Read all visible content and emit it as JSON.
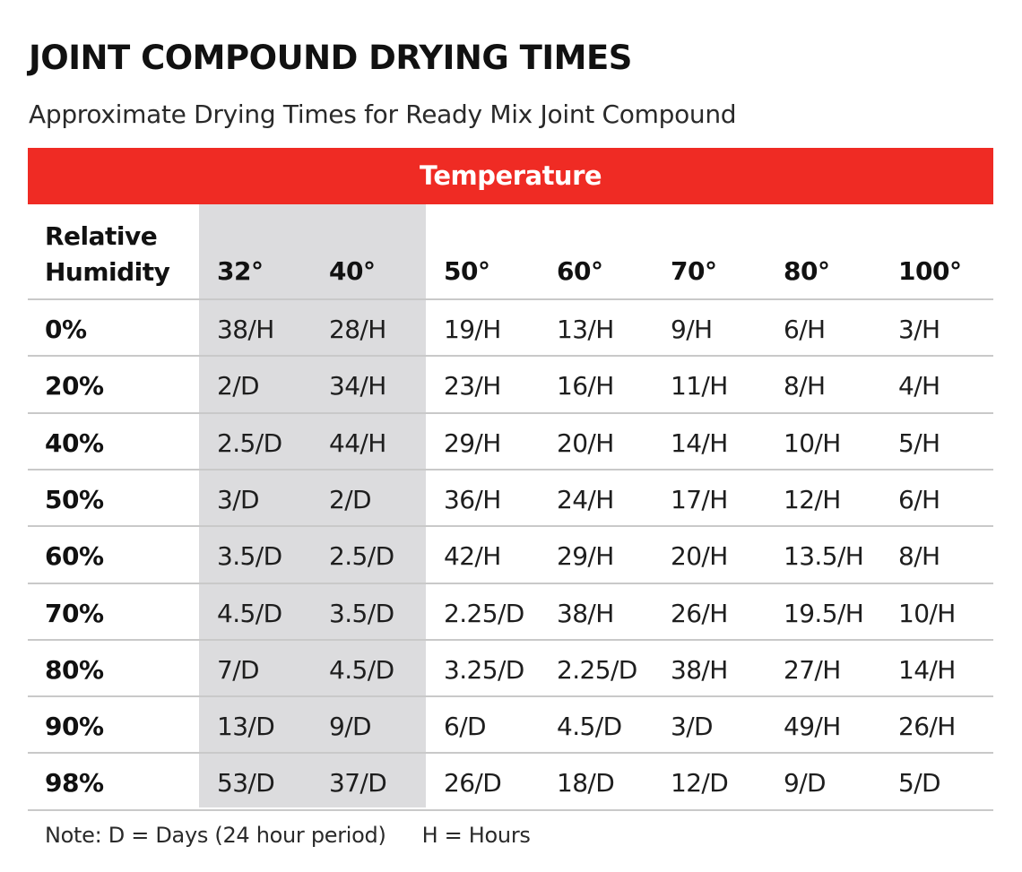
{
  "title": "JOINT COMPOUND DRYING TIMES",
  "subtitle": "Approximate Drying Times for Ready Mix Joint Compound",
  "colors": {
    "band": "#ef2b24",
    "shade": "#dcdcde",
    "rule": "#c9c9c9"
  },
  "chart_data": {
    "type": "table",
    "title": "JOINT COMPOUND DRYING TIMES",
    "subtitle": "Approximate Drying Times for Ready Mix Joint Compound",
    "column_group_label": "Temperature",
    "row_header_label": [
      "Relative",
      "Humidity"
    ],
    "columns": [
      "32°",
      "40°",
      "50°",
      "60°",
      "70°",
      "80°",
      "100°"
    ],
    "shaded_columns": [
      "32°",
      "40°"
    ],
    "rows": [
      {
        "label": "0%",
        "values": [
          "38/H",
          "28/H",
          "19/H",
          "13/H",
          "9/H",
          "6/H",
          "3/H"
        ]
      },
      {
        "label": "20%",
        "values": [
          "2/D",
          "34/H",
          "23/H",
          "16/H",
          "11/H",
          "8/H",
          "4/H"
        ]
      },
      {
        "label": "40%",
        "values": [
          "2.5/D",
          "44/H",
          "29/H",
          "20/H",
          "14/H",
          "10/H",
          "5/H"
        ]
      },
      {
        "label": "50%",
        "values": [
          "3/D",
          "2/D",
          "36/H",
          "24/H",
          "17/H",
          "12/H",
          "6/H"
        ]
      },
      {
        "label": "60%",
        "values": [
          "3.5/D",
          "2.5/D",
          "42/H",
          "29/H",
          "20/H",
          "13.5/H",
          "8/H"
        ]
      },
      {
        "label": "70%",
        "values": [
          "4.5/D",
          "3.5/D",
          "2.25/D",
          "38/H",
          "26/H",
          "19.5/H",
          "10/H"
        ]
      },
      {
        "label": "80%",
        "values": [
          "7/D",
          "4.5/D",
          "3.25/D",
          "2.25/D",
          "38/H",
          "27/H",
          "14/H"
        ]
      },
      {
        "label": "90%",
        "values": [
          "13/D",
          "9/D",
          "6/D",
          "4.5/D",
          "3/D",
          "49/H",
          "26/H"
        ]
      },
      {
        "label": "98%",
        "values": [
          "53/D",
          "37/D",
          "26/D",
          "18/D",
          "12/D",
          "9/D",
          "5/D"
        ]
      }
    ],
    "note": {
      "days": "Note:  D = Days (24 hour period)",
      "hours": "H = Hours"
    }
  }
}
